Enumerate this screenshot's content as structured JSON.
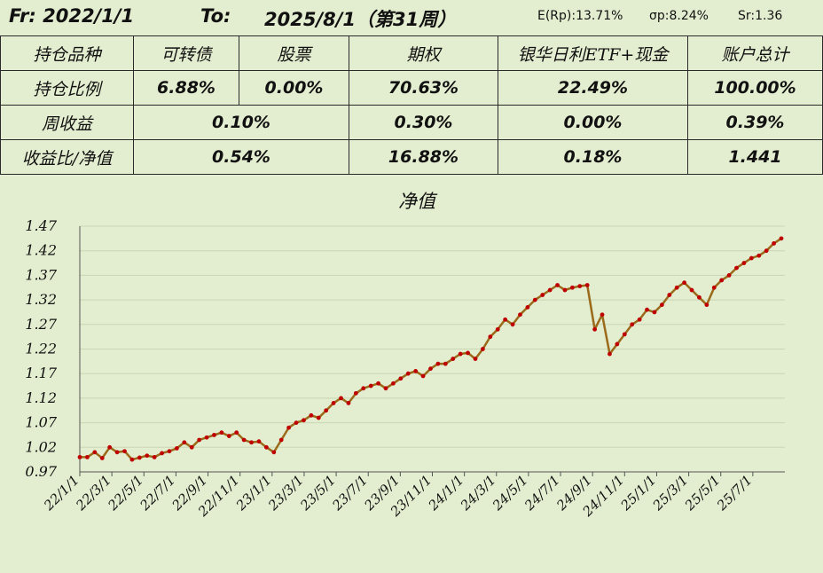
{
  "header": {
    "from": "Fr: 2022/1/1",
    "to_label": "To:",
    "to_date": "2025/8/1（第31周）",
    "e_rp": "E(Rp):13.71%",
    "sigma_p": "σp:8.24%",
    "sr": "Sr:1.36"
  },
  "table": {
    "headers": [
      "持仓品种",
      "可转债",
      "股票",
      "期权",
      "银华日利ETF+现金",
      "账户总计"
    ],
    "holding_ratio": {
      "label": "持仓比例",
      "values": [
        "6.88%",
        "0.00%",
        "70.63%",
        "22.49%",
        "100.00%"
      ]
    },
    "weekly_return": {
      "label": "周收益",
      "values": [
        "0.10%",
        "0.30%",
        "0.00%",
        "0.39%"
      ]
    },
    "return_ratio": {
      "label": "收益比/净值",
      "values": [
        "0.54%",
        "16.88%",
        "0.18%",
        "1.441"
      ]
    }
  },
  "colors": {
    "line": "#c00000",
    "line_dark": "#9a6a1a",
    "background": "#e3edcf",
    "grid": "#c9d6b5"
  },
  "chart_data": {
    "type": "line",
    "title": "净值",
    "xlabel": "",
    "ylabel": "",
    "y_ticks": [
      "0.97",
      "1.02",
      "1.07",
      "1.12",
      "1.17",
      "1.22",
      "1.27",
      "1.32",
      "1.37",
      "1.42",
      "1.47"
    ],
    "ylim": [
      0.97,
      1.47
    ],
    "x_ticks": [
      "22/1/1",
      "22/3/1",
      "22/5/1",
      "22/7/1",
      "22/9/1",
      "22/11/1",
      "23/1/1",
      "23/3/1",
      "23/5/1",
      "23/7/1",
      "23/9/1",
      "23/11/1",
      "24/1/1",
      "24/3/1",
      "24/5/1",
      "24/7/1",
      "24/9/1",
      "24/11/1",
      "25/1/1",
      "25/3/1",
      "25/5/1",
      "25/7/1"
    ],
    "grid": "horizontal",
    "series": [
      {
        "values": [
          1.0,
          1.0,
          1.01,
          0.998,
          1.02,
          1.01,
          1.012,
          0.995,
          0.999,
          1.003,
          1.0,
          1.008,
          1.012,
          1.018,
          1.03,
          1.02,
          1.035,
          1.04,
          1.045,
          1.05,
          1.043,
          1.05,
          1.035,
          1.03,
          1.032,
          1.02,
          1.01,
          1.035,
          1.06,
          1.07,
          1.075,
          1.085,
          1.08,
          1.095,
          1.11,
          1.12,
          1.11,
          1.13,
          1.14,
          1.145,
          1.15,
          1.14,
          1.15,
          1.16,
          1.17,
          1.175,
          1.165,
          1.18,
          1.19,
          1.19,
          1.2,
          1.21,
          1.212,
          1.2,
          1.22,
          1.245,
          1.26,
          1.28,
          1.27,
          1.29,
          1.305,
          1.32,
          1.33,
          1.34,
          1.35,
          1.34,
          1.345,
          1.348,
          1.35,
          1.26,
          1.29,
          1.21,
          1.23,
          1.25,
          1.27,
          1.28,
          1.3,
          1.295,
          1.31,
          1.33,
          1.345,
          1.355,
          1.34,
          1.325,
          1.31,
          1.345,
          1.36,
          1.37,
          1.385,
          1.395,
          1.405,
          1.41,
          1.42,
          1.435,
          1.445
        ]
      }
    ]
  }
}
